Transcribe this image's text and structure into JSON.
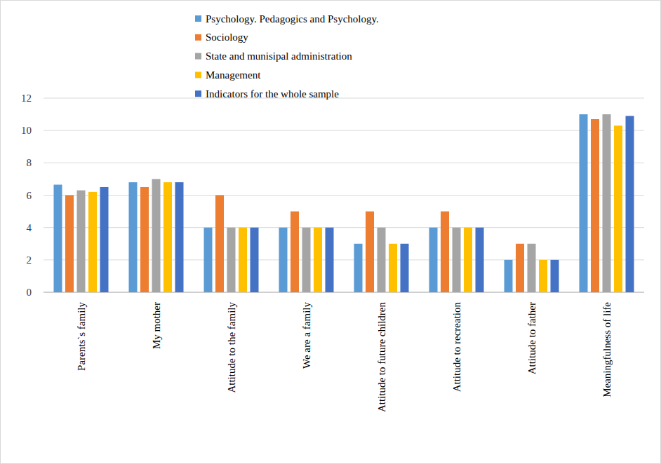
{
  "chart_data": {
    "type": "bar",
    "categories": [
      "Parents`s family",
      "My mother",
      "Attitude to the family",
      "We are a family",
      "Attitude to future children",
      "Attitude to recreation",
      "Attitude to father",
      "Meaningfulness of life"
    ],
    "series": [
      {
        "name": "Psychology. Pedagogics and Psychology.",
        "color": "#5B9BD5",
        "values": [
          6.65,
          6.8,
          4,
          4,
          3,
          4,
          2,
          11
        ]
      },
      {
        "name": "Sociology",
        "color": "#ED7D31",
        "values": [
          6.0,
          6.5,
          6,
          5,
          5,
          5,
          3,
          10.7
        ]
      },
      {
        "name": "State and munisipal administration",
        "color": "#A5A5A5",
        "values": [
          6.3,
          7.0,
          4,
          4,
          4,
          4,
          3,
          11
        ]
      },
      {
        "name": "Management",
        "color": "#FFC000",
        "values": [
          6.2,
          6.8,
          4,
          4,
          3,
          4,
          2,
          10.3
        ]
      },
      {
        "name": "Indicators for the whole sample",
        "color": "#4472C4",
        "values": [
          6.5,
          6.8,
          4,
          4,
          3,
          4,
          2,
          10.9
        ]
      }
    ],
    "ylim": [
      0,
      12
    ],
    "yticks": [
      0,
      2,
      4,
      6,
      8,
      10,
      12
    ],
    "grid": true,
    "legend": "top"
  }
}
